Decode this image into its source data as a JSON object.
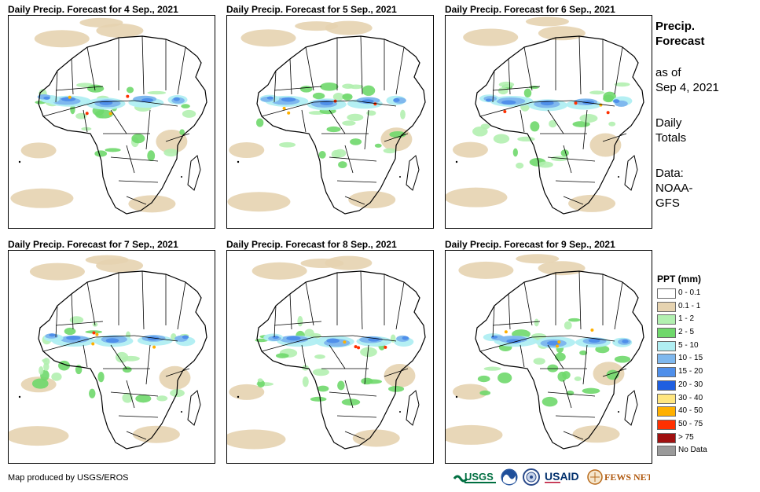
{
  "panels": [
    {
      "title": "Daily Precip. Forecast for 4 Sep., 2021"
    },
    {
      "title": "Daily Precip. Forecast for 5 Sep., 2021"
    },
    {
      "title": "Daily Precip. Forecast for 6 Sep., 2021"
    },
    {
      "title": "Daily Precip. Forecast for 7 Sep., 2021"
    },
    {
      "title": "Daily Precip. Forecast for 8 Sep., 2021"
    },
    {
      "title": "Daily Precip. Forecast for 9 Sep., 2021"
    }
  ],
  "side": {
    "title_line1": "Precip.",
    "title_line2": "Forecast",
    "asof_line1": "as of",
    "asof_line2": "Sep 4, 2021",
    "totals_line1": "Daily",
    "totals_line2": "Totals",
    "data_line1": "Data:",
    "data_line2": "NOAA-",
    "data_line3": "GFS"
  },
  "legend": {
    "title": "PPT (mm)",
    "items": [
      {
        "label": "0 - 0.1",
        "color": "#ffffff"
      },
      {
        "label": "0.1 - 1",
        "color": "#e6d3b0"
      },
      {
        "label": "1 - 2",
        "color": "#b2f0b0"
      },
      {
        "label": "2 - 5",
        "color": "#6fd86b"
      },
      {
        "label": "5 - 10",
        "color": "#b0eef2"
      },
      {
        "label": "10 - 15",
        "color": "#7fb8ee"
      },
      {
        "label": "15 - 20",
        "color": "#4f8fea"
      },
      {
        "label": "20 - 30",
        "color": "#1f5fe0"
      },
      {
        "label": "30 - 40",
        "color": "#ffe680"
      },
      {
        "label": "40 - 50",
        "color": "#ffb000"
      },
      {
        "label": "50 - 75",
        "color": "#ff3000"
      },
      {
        "label": "> 75",
        "color": "#a01010"
      },
      {
        "label": "No Data",
        "color": "#9a9a9a"
      }
    ]
  },
  "footer": {
    "credit": "Map produced by USGS/EROS",
    "logos": [
      "USGS",
      "NOAA",
      "USAID",
      "FEWS NET"
    ]
  }
}
